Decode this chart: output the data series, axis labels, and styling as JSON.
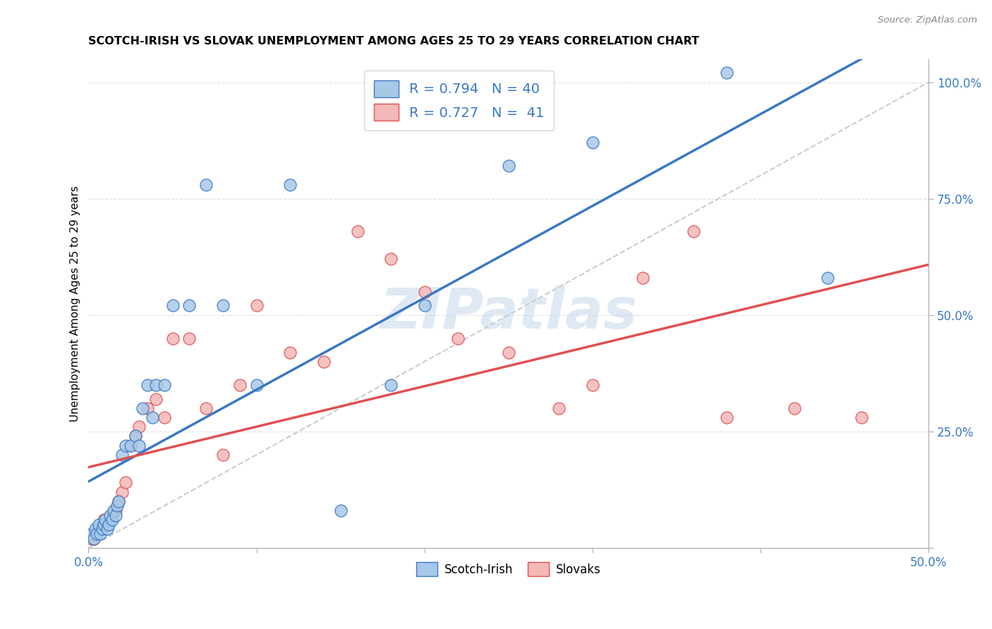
{
  "title": "SCOTCH-IRISH VS SLOVAK UNEMPLOYMENT AMONG AGES 25 TO 29 YEARS CORRELATION CHART",
  "source": "Source: ZipAtlas.com",
  "ylabel": "Unemployment Among Ages 25 to 29 years",
  "xlim": [
    0.0,
    0.5
  ],
  "ylim": [
    0.0,
    1.05
  ],
  "yticks": [
    0.0,
    0.25,
    0.5,
    0.75,
    1.0
  ],
  "ytick_labels": [
    "",
    "25.0%",
    "50.0%",
    "75.0%",
    "100.0%"
  ],
  "xticks": [
    0.0,
    0.1,
    0.2,
    0.3,
    0.4,
    0.5
  ],
  "xtick_labels": [
    "0.0%",
    "",
    "",
    "",
    "",
    "50.0%"
  ],
  "scotch_irish_color": "#a8c8e8",
  "slovak_color": "#f4b8b8",
  "line_scotch_color": "#3a78c4",
  "line_slovak_color": "#e05050",
  "diagonal_color": "#cccccc",
  "legend_text_color": "#3a78c4",
  "R_scotch": 0.794,
  "N_scotch": 40,
  "R_slovak": 0.727,
  "N_slovak": 41,
  "scotch_irish_x": [
    0.002,
    0.003,
    0.004,
    0.005,
    0.006,
    0.007,
    0.008,
    0.009,
    0.01,
    0.011,
    0.012,
    0.013,
    0.014,
    0.015,
    0.016,
    0.017,
    0.018,
    0.02,
    0.022,
    0.025,
    0.028,
    0.03,
    0.032,
    0.035,
    0.038,
    0.04,
    0.045,
    0.05,
    0.06,
    0.07,
    0.08,
    0.1,
    0.12,
    0.15,
    0.18,
    0.2,
    0.25,
    0.3,
    0.38,
    0.44
  ],
  "scotch_irish_y": [
    0.03,
    0.02,
    0.04,
    0.03,
    0.05,
    0.03,
    0.04,
    0.05,
    0.06,
    0.04,
    0.05,
    0.07,
    0.06,
    0.08,
    0.07,
    0.09,
    0.1,
    0.2,
    0.22,
    0.22,
    0.24,
    0.22,
    0.3,
    0.35,
    0.28,
    0.35,
    0.35,
    0.52,
    0.52,
    0.78,
    0.52,
    0.35,
    0.78,
    0.08,
    0.35,
    0.52,
    0.82,
    0.87,
    1.02,
    0.58
  ],
  "slovak_x": [
    0.002,
    0.003,
    0.004,
    0.005,
    0.006,
    0.007,
    0.008,
    0.009,
    0.01,
    0.012,
    0.014,
    0.016,
    0.018,
    0.02,
    0.022,
    0.025,
    0.028,
    0.03,
    0.035,
    0.04,
    0.045,
    0.05,
    0.06,
    0.07,
    0.08,
    0.09,
    0.1,
    0.12,
    0.14,
    0.16,
    0.18,
    0.2,
    0.22,
    0.25,
    0.28,
    0.3,
    0.33,
    0.36,
    0.38,
    0.42,
    0.46
  ],
  "slovak_y": [
    0.02,
    0.02,
    0.03,
    0.03,
    0.04,
    0.04,
    0.05,
    0.06,
    0.05,
    0.06,
    0.07,
    0.08,
    0.1,
    0.12,
    0.14,
    0.22,
    0.24,
    0.26,
    0.3,
    0.32,
    0.28,
    0.45,
    0.45,
    0.3,
    0.2,
    0.35,
    0.52,
    0.42,
    0.4,
    0.68,
    0.62,
    0.55,
    0.45,
    0.42,
    0.3,
    0.35,
    0.58,
    0.68,
    0.28,
    0.3,
    0.28
  ],
  "watermark": "ZIPatlas",
  "background_color": "#ffffff",
  "grid_color": "#e0e0e0"
}
